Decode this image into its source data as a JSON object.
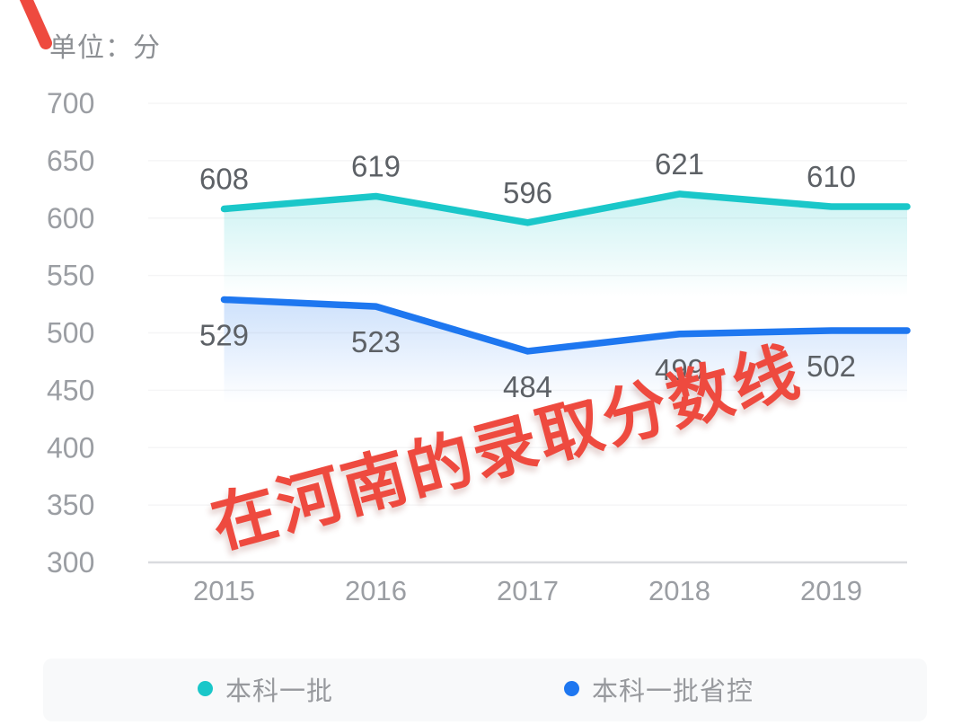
{
  "unit_label": "单位：分",
  "watermark": {
    "text": "在河南的录取分数线",
    "color": "#ee4a3f"
  },
  "chart_data": {
    "type": "line",
    "title": "",
    "xlabel": "",
    "ylabel": "单位：分",
    "x": [
      "2015",
      "2016",
      "2017",
      "2018",
      "2019"
    ],
    "series": [
      {
        "name": "本科一批",
        "color": "#1ac7c9",
        "values": [
          608,
          619,
          596,
          621,
          610
        ],
        "label_side": "above"
      },
      {
        "name": "本科一批省控",
        "color": "#1e77f0",
        "values": [
          529,
          523,
          484,
          499,
          502
        ],
        "label_side": "below"
      }
    ],
    "ylim": [
      300,
      700
    ],
    "yticks": [
      700,
      650,
      600,
      550,
      500,
      450,
      400,
      350,
      300
    ],
    "grid": true,
    "legend_position": "bottom"
  },
  "colors": {
    "axis_text": "#9b9ea3",
    "value_label": "#5d6166",
    "baseline": "#d9dbdf",
    "gridline": "rgba(110,115,130,0.07)",
    "legend_bg": "#f8f9fa"
  }
}
